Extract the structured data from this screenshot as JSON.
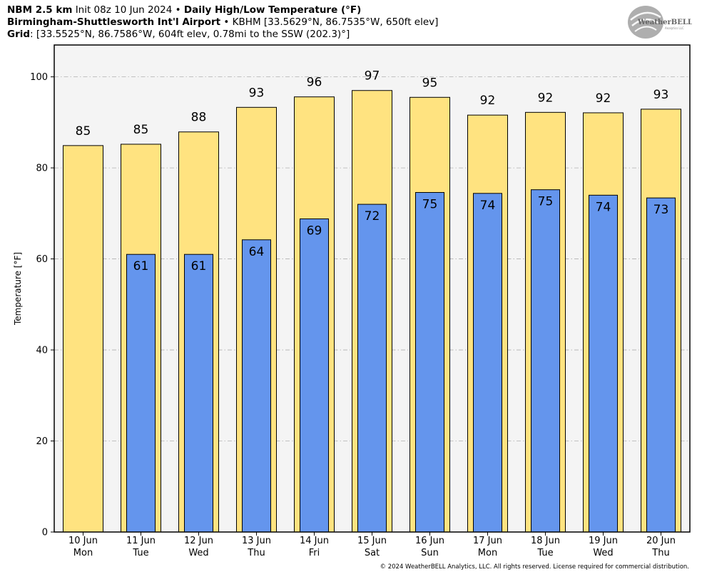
{
  "header": {
    "line1": {
      "model": "NBM 2.5 km",
      "init": "Init 08z 10 Jun 2024",
      "sep": "•",
      "product": "Daily High/Low Temperature (°F)"
    },
    "line2": {
      "station": "Birmingham-Shuttlesworth Int'l Airport",
      "sep": "•",
      "info": "KBHM [33.5629°N, 86.7535°W, 650ft elev]"
    },
    "line3": {
      "label": "Grid",
      "info": ": [33.5525°N, 86.7586°W, 604ft elev, 0.78mi to the SSW (202.3)°]"
    }
  },
  "logo": {
    "text_big": "WeatherBELL",
    "text_small": "Analytics LLC"
  },
  "copyright": "© 2024 WeatherBELL Analytics, LLC. All rights reserved. License required for commercial distribution.",
  "chart_data": {
    "type": "bar",
    "ylabel": "Temperature [°F]",
    "ylim": [
      0,
      107
    ],
    "yticks": [
      0,
      20,
      40,
      60,
      80,
      100
    ],
    "grid": true,
    "categories": [
      {
        "date": "10 Jun",
        "day": "Mon"
      },
      {
        "date": "11 Jun",
        "day": "Tue"
      },
      {
        "date": "12 Jun",
        "day": "Wed"
      },
      {
        "date": "13 Jun",
        "day": "Thu"
      },
      {
        "date": "14 Jun",
        "day": "Fri"
      },
      {
        "date": "15 Jun",
        "day": "Sat"
      },
      {
        "date": "16 Jun",
        "day": "Sun"
      },
      {
        "date": "17 Jun",
        "day": "Mon"
      },
      {
        "date": "18 Jun",
        "day": "Tue"
      },
      {
        "date": "19 Jun",
        "day": "Wed"
      },
      {
        "date": "20 Jun",
        "day": "Thu"
      }
    ],
    "series": [
      {
        "key": "high",
        "color": "#FFE380",
        "values": [
          84.9,
          85.2,
          87.9,
          93.3,
          95.6,
          97.0,
          95.5,
          91.6,
          92.2,
          92.1,
          92.9
        ],
        "labels": [
          "85",
          "85",
          "88",
          "93",
          "96",
          "97",
          "95",
          "92",
          "92",
          "92",
          "93"
        ]
      },
      {
        "key": "low",
        "color": "#6495ED",
        "values": [
          null,
          61.0,
          61.0,
          64.2,
          68.8,
          72.0,
          74.6,
          74.4,
          75.2,
          74.0,
          73.4
        ],
        "labels": [
          null,
          "61",
          "61",
          "64",
          "69",
          "72",
          "75",
          "74",
          "75",
          "74",
          "73"
        ]
      }
    ]
  }
}
